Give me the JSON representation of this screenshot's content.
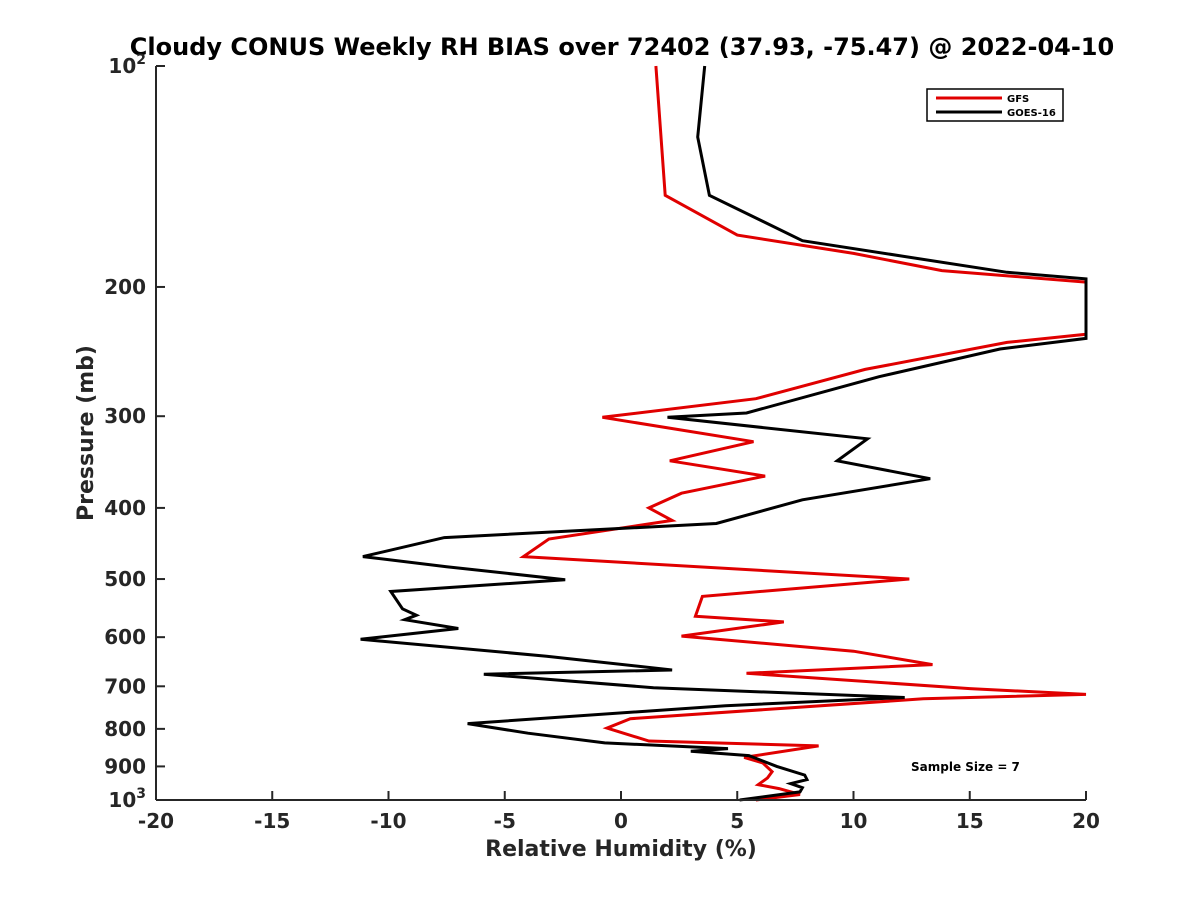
{
  "chart_data": {
    "type": "line",
    "title": "Cloudy CONUS Weekly RH BIAS over 72402 (37.93, -75.47) @ 2022-04-10",
    "xlabel": "Relative Humidity (%)",
    "ylabel": "Pressure (mb)",
    "xlim": [
      -20,
      20
    ],
    "ylim": [
      100,
      1000
    ],
    "y_scale": "log",
    "y_reversed": true,
    "grid": false,
    "legend_position": "top-right",
    "x_ticks": [
      "-20",
      "-15",
      "-10",
      "-5",
      "0",
      "5",
      "10",
      "15",
      "20"
    ],
    "y_ticks": [
      {
        "value": 100,
        "label": "10",
        "sup": "2"
      },
      {
        "value": 200,
        "label": "200",
        "sup": ""
      },
      {
        "value": 300,
        "label": "300",
        "sup": ""
      },
      {
        "value": 400,
        "label": "400",
        "sup": ""
      },
      {
        "value": 500,
        "label": "500",
        "sup": ""
      },
      {
        "value": 600,
        "label": "600",
        "sup": ""
      },
      {
        "value": 700,
        "label": "700",
        "sup": ""
      },
      {
        "value": 800,
        "label": "800",
        "sup": ""
      },
      {
        "value": 900,
        "label": "900",
        "sup": ""
      },
      {
        "value": 1000,
        "label": "10",
        "sup": "3"
      }
    ],
    "annotation": "Sample Size = 7",
    "series": [
      {
        "name": "GFS",
        "color": "#e00000",
        "points": [
          [
            1.5,
            100
          ],
          [
            1.9,
            150
          ],
          [
            5.0,
            170
          ],
          [
            10.0,
            180
          ],
          [
            13.8,
            190
          ],
          [
            20.0,
            197
          ],
          [
            20.0,
            232
          ],
          [
            16.6,
            238
          ],
          [
            10.5,
            259
          ],
          [
            5.8,
            284
          ],
          [
            -0.8,
            301
          ],
          [
            5.7,
            325
          ],
          [
            2.1,
            345
          ],
          [
            6.2,
            362
          ],
          [
            2.6,
            382
          ],
          [
            1.2,
            400
          ],
          [
            2.2,
            416
          ],
          [
            -3.1,
            441
          ],
          [
            -4.2,
            466
          ],
          [
            12.4,
            500
          ],
          [
            3.5,
            528
          ],
          [
            3.2,
            562
          ],
          [
            7.0,
            572
          ],
          [
            2.6,
            598
          ],
          [
            10.0,
            627
          ],
          [
            13.4,
            654
          ],
          [
            5.4,
            672
          ],
          [
            15.0,
            705
          ],
          [
            20.0,
            718
          ],
          [
            13.0,
            728
          ],
          [
            0.4,
            775
          ],
          [
            -0.6,
            798
          ],
          [
            1.2,
            831
          ],
          [
            8.5,
            844
          ],
          [
            5.3,
            875
          ],
          [
            6.1,
            890
          ],
          [
            6.5,
            915
          ],
          [
            6.3,
            933
          ],
          [
            5.9,
            953
          ],
          [
            6.8,
            965
          ],
          [
            7.7,
            983
          ],
          [
            5.8,
            1000
          ]
        ]
      },
      {
        "name": "GOES-16",
        "color": "#000000",
        "points": [
          [
            3.6,
            100
          ],
          [
            3.3,
            125
          ],
          [
            3.8,
            150
          ],
          [
            7.8,
            173
          ],
          [
            16.6,
            191
          ],
          [
            20.0,
            195
          ],
          [
            20.0,
            235
          ],
          [
            16.3,
            243
          ],
          [
            11.1,
            265
          ],
          [
            5.4,
            297
          ],
          [
            2.0,
            301
          ],
          [
            10.6,
            322
          ],
          [
            9.3,
            345
          ],
          [
            13.3,
            365
          ],
          [
            7.8,
            390
          ],
          [
            4.1,
            420
          ],
          [
            -7.6,
            439
          ],
          [
            -11.1,
            466
          ],
          [
            -7.5,
            481
          ],
          [
            -2.4,
            501
          ],
          [
            -9.9,
            520
          ],
          [
            -9.4,
            549
          ],
          [
            -8.8,
            560
          ],
          [
            -9.3,
            568
          ],
          [
            -7.0,
            584
          ],
          [
            -11.2,
            604
          ],
          [
            -3.2,
            637
          ],
          [
            2.2,
            665
          ],
          [
            -5.9,
            674
          ],
          [
            1.4,
            703
          ],
          [
            12.2,
            725
          ],
          [
            4.5,
            744
          ],
          [
            -6.6,
            787
          ],
          [
            -4.0,
            811
          ],
          [
            -0.7,
            836
          ],
          [
            4.6,
            851
          ],
          [
            3.0,
            858
          ],
          [
            5.5,
            870
          ],
          [
            6.7,
            900
          ],
          [
            7.9,
            925
          ],
          [
            8.0,
            938
          ],
          [
            7.3,
            950
          ],
          [
            7.8,
            962
          ],
          [
            7.7,
            975
          ],
          [
            5.1,
            1000
          ]
        ]
      }
    ]
  }
}
